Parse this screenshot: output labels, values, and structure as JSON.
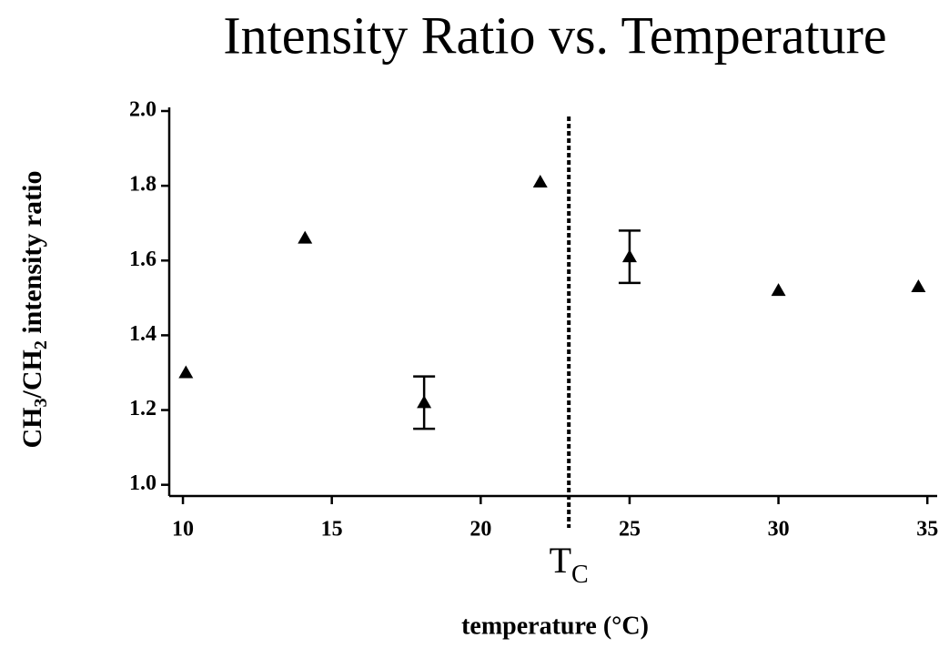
{
  "chart_data": {
    "type": "scatter",
    "title": "Intensity Ratio vs. Temperature",
    "x_label": "temperature (°C)",
    "y_label": [
      "CH",
      "3",
      "/CH",
      "2",
      " intensity ratio"
    ],
    "x": [
      10.1,
      14.1,
      18.1,
      22,
      25,
      30,
      34.7
    ],
    "values": [
      1.3,
      1.66,
      1.22,
      1.81,
      1.61,
      1.52,
      1.53
    ],
    "errors": [
      null,
      null,
      0.07,
      null,
      0.07,
      null,
      null
    ],
    "color": "#000000",
    "xlim": [
      9.54,
      35.33
    ],
    "ylim": [
      0.97,
      2.0
    ],
    "xticks": [
      10,
      15,
      20,
      25,
      30,
      35
    ],
    "yticks": [
      {
        "value": 1,
        "label": "1.0"
      },
      1.2,
      1.4,
      1.6,
      1.8,
      {
        "value": 2,
        "label": "2.0"
      }
    ],
    "annotation": {
      "text": "T",
      "subscript": "C",
      "x": 22.96
    }
  }
}
